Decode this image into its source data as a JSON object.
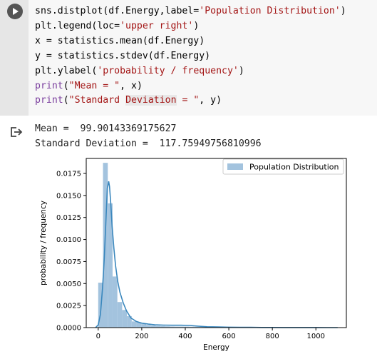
{
  "cell": {
    "lines": [
      {
        "pre": "sns.distplot(df.Energy,label=",
        "str": "'Population Distribution'",
        "post": ")"
      },
      {
        "pre": "plt.legend(loc=",
        "str": "'upper right'",
        "post": ")"
      },
      {
        "pre": "x = statistics.mean(df.Energy)",
        "str": "",
        "post": ""
      },
      {
        "pre": "y = statistics.stdev(df.Energy)",
        "str": "",
        "post": ""
      },
      {
        "pre": "plt.ylabel(",
        "str": "'probability / frequency'",
        "post": ")"
      }
    ],
    "print1": {
      "kw": "print",
      "open": "(",
      "str": "\"Mean = \"",
      "rest": ", x)"
    },
    "print2": {
      "kw": "print",
      "open": "(",
      "str_a": "\"Standard ",
      "str_hl": "Deviation",
      "str_b": " = \"",
      "rest": ", y)"
    }
  },
  "output": {
    "mean_line": "Mean =  99.90143369175627",
    "std_line": "Standard Deviation =  117.75949756810996"
  },
  "chart_data": {
    "type": "bar",
    "title": "",
    "xlabel": "Energy",
    "ylabel": "probability / frequency",
    "xlim": [
      -55,
      1140
    ],
    "ylim": [
      0,
      0.0192
    ],
    "xticks": [
      0,
      200,
      400,
      600,
      800,
      1000
    ],
    "xtick_labels": [
      "0",
      "200",
      "400",
      "600",
      "800",
      "1000"
    ],
    "yticks": [
      0,
      0.0025,
      0.005,
      0.0075,
      0.01,
      0.0125,
      0.015,
      0.0175
    ],
    "ytick_labels": [
      "0.0000",
      "0.0025",
      "0.0050",
      "0.0075",
      "0.0100",
      "0.0125",
      "0.0150",
      "0.0175"
    ],
    "legend": {
      "label": "Population Distribution",
      "placement": "upper right"
    },
    "bar_color": "#a3c3de",
    "line_color": "#3a87bd",
    "histogram": {
      "bin_edges": [
        0,
        22,
        44,
        66,
        88,
        110,
        132,
        154,
        176,
        198,
        220,
        242,
        264,
        286,
        308,
        330,
        352,
        374,
        396,
        418,
        440,
        462,
        484,
        506,
        528,
        550,
        572,
        594,
        616,
        638,
        660,
        682,
        704,
        726,
        748,
        770,
        792,
        814,
        836,
        858,
        880,
        902,
        924,
        946,
        968,
        990,
        1012,
        1034,
        1056,
        1078,
        1100
      ],
      "density": [
        0.0051,
        0.0187,
        0.0141,
        0.0058,
        0.0029,
        0.002,
        0.0013,
        0.0007,
        0.0006,
        0.0004,
        0.0003,
        0.00025,
        0.0002,
        0.00018,
        0.00015,
        0.00013,
        0.00012,
        0.00012,
        0.00012,
        0.00011,
        0.0001,
        8e-05,
        7e-05,
        6e-05,
        5e-05,
        4e-05,
        4e-05,
        3e-05,
        3e-05,
        3e-05,
        2e-05,
        2e-05,
        2e-05,
        2e-05,
        2e-05,
        1e-05,
        1e-05,
        1e-05,
        1e-05,
        1e-05,
        1e-05,
        1e-05,
        1e-05,
        1e-05,
        5e-06,
        5e-06,
        5e-06,
        5e-06,
        5e-06,
        5e-06
      ]
    },
    "kde": {
      "x": [
        -12,
        0,
        10,
        20,
        28,
        36,
        42,
        48,
        52,
        58,
        64,
        72,
        80,
        90,
        100,
        115,
        130,
        150,
        175,
        200,
        230,
        260,
        300,
        340,
        380,
        420,
        460,
        500,
        550,
        600,
        650,
        700,
        750,
        800,
        850,
        900,
        950,
        1000,
        1050,
        1100
      ],
      "y": [
        0,
        0.0003,
        0.0015,
        0.0045,
        0.008,
        0.0125,
        0.0158,
        0.0166,
        0.016,
        0.014,
        0.0115,
        0.009,
        0.007,
        0.0052,
        0.004,
        0.0028,
        0.0019,
        0.0011,
        0.0007,
        0.0005,
        0.0004,
        0.00032,
        0.00028,
        0.00027,
        0.00027,
        0.00024,
        0.00016,
        0.0001,
        7e-05,
        5e-05,
        4e-05,
        3e-05,
        2e-05,
        2e-05,
        1e-05,
        1e-05,
        1e-05,
        5e-06,
        3e-06,
        0
      ]
    }
  }
}
